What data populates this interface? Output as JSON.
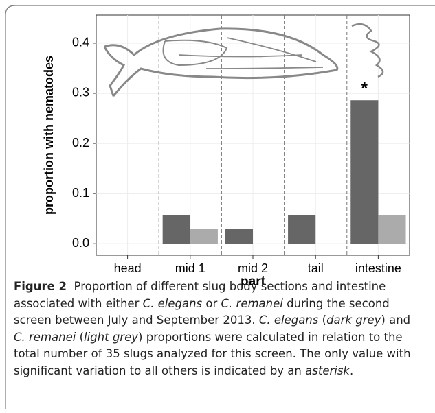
{
  "chart_data": {
    "type": "bar",
    "categories": [
      "head",
      "mid 1",
      "mid 2",
      "tail",
      "intestine"
    ],
    "series": [
      {
        "color": "#666666",
        "values": [
          0,
          0.057,
          0.029,
          0.057,
          0.286
        ]
      },
      {
        "color": "#ababab",
        "values": [
          0,
          0.029,
          0,
          0,
          0.057
        ]
      }
    ],
    "xlabel": "part",
    "ylabel": "proportion with nematodes",
    "ylim": [
      -0.023,
      0.456
    ],
    "yticks": [
      {
        "value": 0,
        "label": "0.0"
      },
      0.1,
      0.2,
      0.3,
      0.4
    ],
    "grid": true,
    "annotations": [
      {
        "text": "*"
      }
    ]
  },
  "caption": {
    "label": "Figure 2",
    "segments": [
      {
        "text": "  Proportion of different slug body sections and intestine associated with either ",
        "italic": false
      },
      {
        "text": "C. elegans",
        "italic": true
      },
      {
        "text": " or ",
        "italic": false
      },
      {
        "text": "C. remanei",
        "italic": true
      },
      {
        "text": " during the second screen between July and September 2013. ",
        "italic": false
      },
      {
        "text": "C. elegans",
        "italic": true
      },
      {
        "text": " (",
        "italic": false
      },
      {
        "text": "dark grey",
        "italic": true
      },
      {
        "text": ") and ",
        "italic": false
      },
      {
        "text": "C. remanei",
        "italic": true
      },
      {
        "text": " (",
        "italic": false
      },
      {
        "text": "light grey",
        "italic": true
      },
      {
        "text": ") proportions were calculated in relation to the total number of 35 slugs analyzed for this screen. The only value with significant variation to all others is indicated by an ",
        "italic": false
      },
      {
        "text": "asterisk",
        "italic": true
      },
      {
        "text": ".",
        "italic": false
      }
    ]
  }
}
